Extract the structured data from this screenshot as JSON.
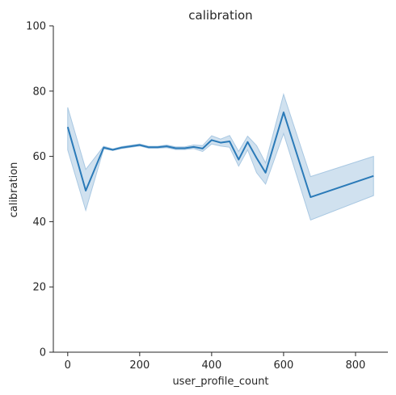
{
  "chart_data": {
    "type": "line",
    "title": "calibration",
    "xlabel": "user_profile_count",
    "ylabel": "calibration",
    "xlim": [
      -40,
      890
    ],
    "ylim": [
      0,
      100
    ],
    "xticks": [
      0,
      200,
      400,
      600,
      800
    ],
    "yticks": [
      0,
      20,
      40,
      60,
      80,
      100
    ],
    "grid": false,
    "legend": "none",
    "colors": {
      "line": "#2a7ab8",
      "band": "#a9c8e2",
      "axis": "#262626"
    },
    "series": [
      {
        "x": [
          0,
          50,
          100,
          125,
          150,
          200,
          225,
          250,
          275,
          300,
          325,
          350,
          375,
          400,
          425,
          450,
          475,
          500,
          525,
          550,
          600,
          675,
          850
        ],
        "y": [
          69,
          49.5,
          62.7,
          62,
          62.7,
          63.5,
          62.8,
          62.8,
          63.1,
          62.5,
          62.5,
          62.9,
          62.4,
          65,
          64.2,
          64.6,
          59,
          64.4,
          59.5,
          55,
          73.5,
          47.5,
          54
        ],
        "lower": [
          62,
          43.5,
          62.3,
          61.8,
          62.4,
          63.2,
          62.5,
          62.5,
          62.7,
          62.1,
          62.1,
          62.4,
          61.5,
          63.8,
          63.2,
          62.8,
          57,
          62,
          55,
          51.5,
          67,
          40.5,
          48
        ],
        "upper": [
          75,
          56,
          63.1,
          62.3,
          63,
          63.8,
          63.1,
          63.1,
          63.5,
          62.9,
          62.9,
          63.5,
          63.3,
          66.3,
          65.3,
          66.4,
          61.5,
          66.2,
          63.3,
          58,
          79,
          53.8,
          60
        ]
      }
    ]
  }
}
